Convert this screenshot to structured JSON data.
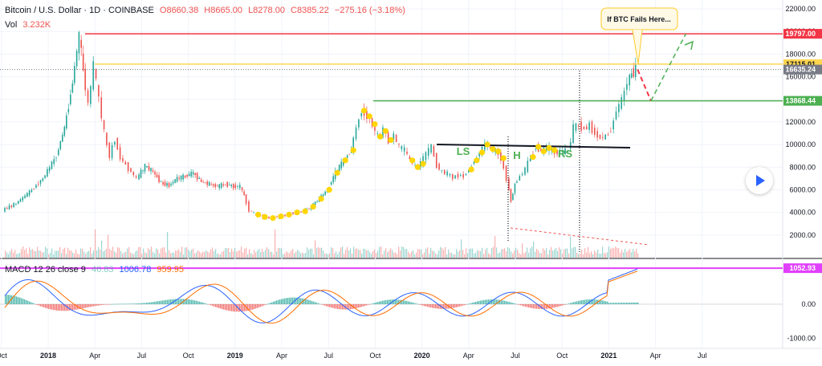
{
  "header": {
    "title": "Bitcoin / U.S. Dollar · 1D · COINBASE",
    "open": "O8660.38",
    "high": "H8665.00",
    "low": "L8278.00",
    "close": "C8385.22",
    "change": "−275.16 (−3.18%)",
    "vol_label": "Vol",
    "vol_value": "3.232K"
  },
  "macd": {
    "title": "MACD 12 26 close 9",
    "v1": "46.83",
    "v2": "1006.78",
    "v3": "959.95"
  },
  "callout": "If BTC Fails Here...",
  "colors": {
    "up": "#26a69a",
    "down": "#ef5350",
    "red_level": "#f23645",
    "yellow_level": "#ffd54f",
    "green_level": "#4caf50",
    "macd_level": "#e040fb",
    "macd_line": "#2962ff",
    "signal_line": "#ff6d00",
    "marker": "#ffd600"
  },
  "chart_data": {
    "type": "line",
    "price_axis": {
      "ticks": [
        "22000.00",
        "20000.00",
        "18000.00",
        "16000.00",
        "14000.00",
        "12000.00",
        "10000.00",
        "8000.00",
        "6000.00",
        "4000.00",
        "2000.00"
      ],
      "ylim": [
        0,
        22500
      ]
    },
    "macd_axis": {
      "ticks": [
        "0.00",
        "-1000.00"
      ],
      "ylim": [
        -1150,
        1150
      ]
    },
    "time_axis": [
      "Oct",
      "2018",
      "Apr",
      "Jul",
      "Oct",
      "2019",
      "Apr",
      "Jul",
      "Oct",
      "2020",
      "Apr",
      "Jul",
      "Oct",
      "2021",
      "Apr",
      "Jul"
    ],
    "levels": [
      {
        "label": "19797.00",
        "value": 19797,
        "color": "#f23645"
      },
      {
        "label": "17115.01",
        "value": 17115,
        "color": "#ffd54f"
      },
      {
        "label": "16635.24",
        "value": 16635,
        "color": "#787b86"
      },
      {
        "label": "13868.44",
        "value": 13868,
        "color": "#4caf50"
      }
    ],
    "macd_level": {
      "label": "1052.93",
      "value": 1053
    },
    "pattern_labels": [
      "LS",
      "H",
      "RS"
    ],
    "price_series": {
      "name": "BTCUSD",
      "points": [
        [
          0.0,
          4200
        ],
        [
          0.5,
          4800
        ],
        [
          1.0,
          5800
        ],
        [
          1.5,
          7000
        ],
        [
          2.0,
          9000
        ],
        [
          2.3,
          11500
        ],
        [
          2.6,
          15500
        ],
        [
          2.85,
          19700
        ],
        [
          3.0,
          16500
        ],
        [
          3.2,
          13500
        ],
        [
          3.4,
          17000
        ],
        [
          3.6,
          14000
        ],
        [
          3.8,
          11000
        ],
        [
          4.0,
          9000
        ],
        [
          4.2,
          10500
        ],
        [
          4.4,
          8800
        ],
        [
          4.6,
          8200
        ],
        [
          4.8,
          7600
        ],
        [
          5.0,
          7000
        ],
        [
          5.3,
          8100
        ],
        [
          5.6,
          7600
        ],
        [
          5.9,
          6600
        ],
        [
          6.2,
          6400
        ],
        [
          6.5,
          7000
        ],
        [
          6.8,
          7200
        ],
        [
          7.1,
          7500
        ],
        [
          7.4,
          6700
        ],
        [
          7.7,
          6500
        ],
        [
          8.0,
          6300
        ],
        [
          8.3,
          6500
        ],
        [
          8.6,
          6300
        ],
        [
          8.85,
          6300
        ],
        [
          9.0,
          5500
        ],
        [
          9.2,
          4200
        ],
        [
          9.45,
          3800
        ],
        [
          9.7,
          3600
        ],
        [
          10.0,
          3500
        ],
        [
          10.3,
          3650
        ],
        [
          10.6,
          3800
        ],
        [
          10.9,
          4000
        ],
        [
          11.2,
          4100
        ],
        [
          11.5,
          4500
        ],
        [
          11.8,
          5200
        ],
        [
          12.1,
          6000
        ],
        [
          12.4,
          7500
        ],
        [
          12.7,
          8600
        ],
        [
          13.0,
          9500
        ],
        [
          13.2,
          11500
        ],
        [
          13.4,
          13000
        ],
        [
          13.6,
          12500
        ],
        [
          13.8,
          11800
        ],
        [
          14.0,
          10700
        ],
        [
          14.2,
          11200
        ],
        [
          14.4,
          10400
        ],
        [
          14.6,
          10800
        ],
        [
          14.8,
          9800
        ],
        [
          15.0,
          9500
        ],
        [
          15.2,
          8600
        ],
        [
          15.4,
          8000
        ],
        [
          15.6,
          8300
        ],
        [
          15.8,
          9200
        ],
        [
          16.0,
          9800
        ],
        [
          16.2,
          8200
        ],
        [
          16.4,
          7600
        ],
        [
          16.6,
          7400
        ],
        [
          16.8,
          7100
        ],
        [
          17.0,
          7300
        ],
        [
          17.2,
          7200
        ],
        [
          17.4,
          7800
        ],
        [
          17.6,
          8600
        ],
        [
          17.8,
          9300
        ],
        [
          18.0,
          10000
        ],
        [
          18.2,
          9600
        ],
        [
          18.4,
          9400
        ],
        [
          18.6,
          8800
        ],
        [
          18.8,
          7000
        ],
        [
          18.95,
          5000
        ],
        [
          19.1,
          6500
        ],
        [
          19.3,
          7200
        ],
        [
          19.5,
          7800
        ],
        [
          19.7,
          8900
        ],
        [
          19.9,
          9800
        ],
        [
          20.1,
          9400
        ],
        [
          20.3,
          9700
        ],
        [
          20.5,
          9500
        ],
        [
          20.7,
          9300
        ],
        [
          20.9,
          9400
        ],
        [
          21.1,
          9400
        ],
        [
          21.3,
          11500
        ],
        [
          21.5,
          11700
        ],
        [
          21.7,
          11400
        ],
        [
          21.9,
          11700
        ],
        [
          22.1,
          11000
        ],
        [
          22.3,
          10600
        ],
        [
          22.5,
          10700
        ],
        [
          22.7,
          11300
        ],
        [
          22.9,
          13000
        ],
        [
          23.1,
          13900
        ],
        [
          23.3,
          15500
        ],
        [
          23.45,
          16300
        ],
        [
          23.6,
          16600
        ]
      ]
    },
    "projection": [
      [
        23.6,
        16635
      ],
      [
        24.1,
        13868
      ],
      [
        25.4,
        19797
      ]
    ],
    "markers": [
      [
        9.45,
        3800
      ],
      [
        9.7,
        3600
      ],
      [
        10.0,
        3500
      ],
      [
        10.3,
        3650
      ],
      [
        10.6,
        3800
      ],
      [
        10.9,
        4000
      ],
      [
        11.2,
        4100
      ],
      [
        11.5,
        4500
      ],
      [
        11.8,
        5200
      ],
      [
        12.1,
        6000
      ],
      [
        12.4,
        7500
      ],
      [
        12.7,
        8600
      ],
      [
        13.0,
        9500
      ],
      [
        13.4,
        13000
      ],
      [
        13.6,
        12500
      ],
      [
        13.8,
        11800
      ],
      [
        14.0,
        10700
      ],
      [
        14.2,
        11200
      ],
      [
        14.4,
        10400
      ],
      [
        15.2,
        8600
      ],
      [
        15.4,
        8000
      ],
      [
        15.6,
        8300
      ],
      [
        17.4,
        7800
      ],
      [
        17.6,
        8600
      ],
      [
        17.8,
        9300
      ],
      [
        18.0,
        10000
      ],
      [
        18.2,
        9600
      ],
      [
        18.4,
        9400
      ],
      [
        18.6,
        8800
      ],
      [
        19.7,
        8900
      ],
      [
        19.9,
        9800
      ],
      [
        20.1,
        9400
      ],
      [
        20.3,
        9700
      ],
      [
        20.5,
        9500
      ]
    ]
  }
}
